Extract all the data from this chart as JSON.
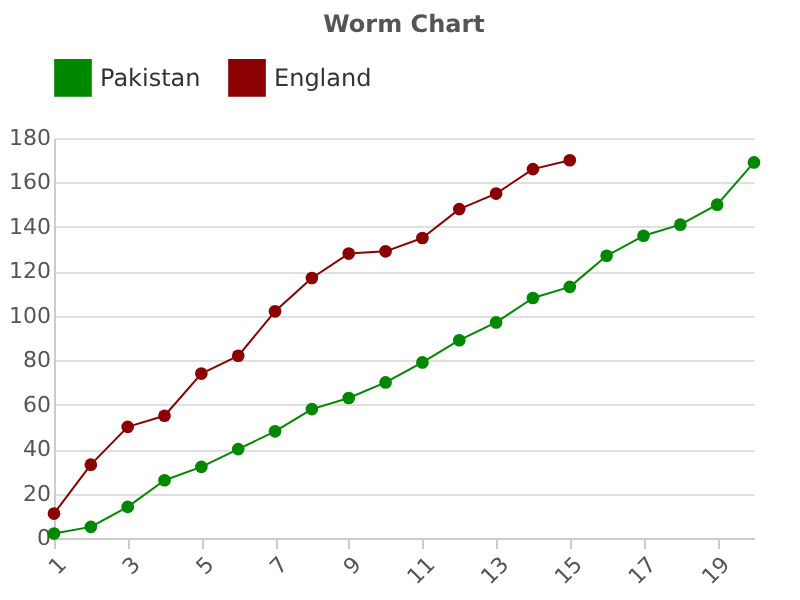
{
  "chart_data": {
    "type": "line",
    "title": "Worm Chart",
    "x": [
      1,
      2,
      3,
      4,
      5,
      6,
      7,
      8,
      9,
      10,
      11,
      12,
      13,
      14,
      15,
      16,
      17,
      18,
      19,
      20
    ],
    "series": [
      {
        "name": "Pakistan",
        "color": "#008800",
        "values": [
          2,
          5,
          14,
          26,
          32,
          40,
          48,
          58,
          63,
          70,
          79,
          89,
          97,
          108,
          113,
          127,
          136,
          141,
          150,
          169
        ]
      },
      {
        "name": "England",
        "color": "#8b0000",
        "values": [
          11,
          33,
          50,
          55,
          74,
          82,
          102,
          117,
          128,
          129,
          135,
          148,
          155,
          166,
          170,
          null,
          null,
          null,
          null,
          null
        ]
      }
    ],
    "xlim": [
      1,
      20
    ],
    "xticks": [
      1,
      3,
      5,
      7,
      9,
      11,
      13,
      15,
      17,
      19
    ],
    "ylim": [
      0,
      180
    ],
    "yticks": [
      0,
      20,
      40,
      60,
      80,
      100,
      120,
      140,
      160,
      180
    ],
    "grid": "y",
    "legend": "top",
    "marker": "circle"
  }
}
